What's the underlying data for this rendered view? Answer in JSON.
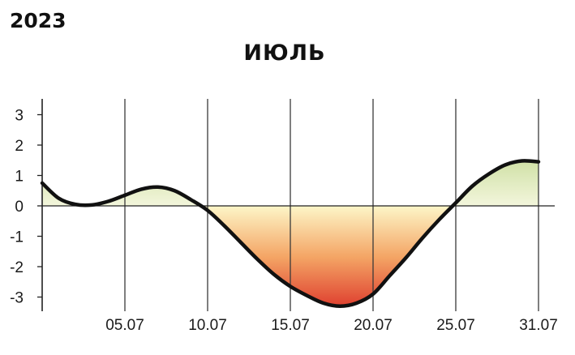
{
  "chart_data": {
    "type": "area",
    "year": "2023",
    "title": "ИЮЛЬ",
    "xlabel": "",
    "ylabel": "",
    "xlim": [
      1,
      31.2
    ],
    "ylim": [
      -3.3,
      3.5
    ],
    "x_ticks": [
      {
        "label": "05.07",
        "value": 6
      },
      {
        "label": "10.07",
        "value": 11
      },
      {
        "label": "15.07",
        "value": 16
      },
      {
        "label": "20.07",
        "value": 21
      },
      {
        "label": "25.07",
        "value": 26
      },
      {
        "label": "31.07",
        "value": 31
      }
    ],
    "y_ticks": [
      3,
      2,
      1,
      0,
      -1,
      -2,
      -3
    ],
    "grid": {
      "vertical": true,
      "horizontal": false
    },
    "series": [
      {
        "x": [
          1,
          2,
          3,
          4,
          5,
          6,
          7,
          8,
          9,
          10,
          11,
          12,
          13,
          14,
          15,
          16,
          17,
          18,
          19,
          20,
          21,
          22,
          23,
          24,
          25,
          26,
          27,
          28,
          29,
          30,
          31
        ],
        "y": [
          0.75,
          0.25,
          0.05,
          0.03,
          0.15,
          0.35,
          0.55,
          0.62,
          0.5,
          0.2,
          -0.15,
          -0.65,
          -1.2,
          -1.75,
          -2.25,
          -2.65,
          -2.95,
          -3.2,
          -3.3,
          -3.2,
          -2.9,
          -2.3,
          -1.7,
          -1.05,
          -0.45,
          0.1,
          0.65,
          1.05,
          1.35,
          1.48,
          1.45
        ]
      }
    ],
    "colors": {
      "line": "#111111",
      "positive_fill_top": "#cfe0a5",
      "positive_fill_base": "#f3f6dc",
      "negative_fill_base": "#fdf6c8",
      "negative_fill_mid": "#f4a565",
      "negative_fill_deep": "#de3d2e",
      "grid": "#3a3a3a"
    }
  }
}
